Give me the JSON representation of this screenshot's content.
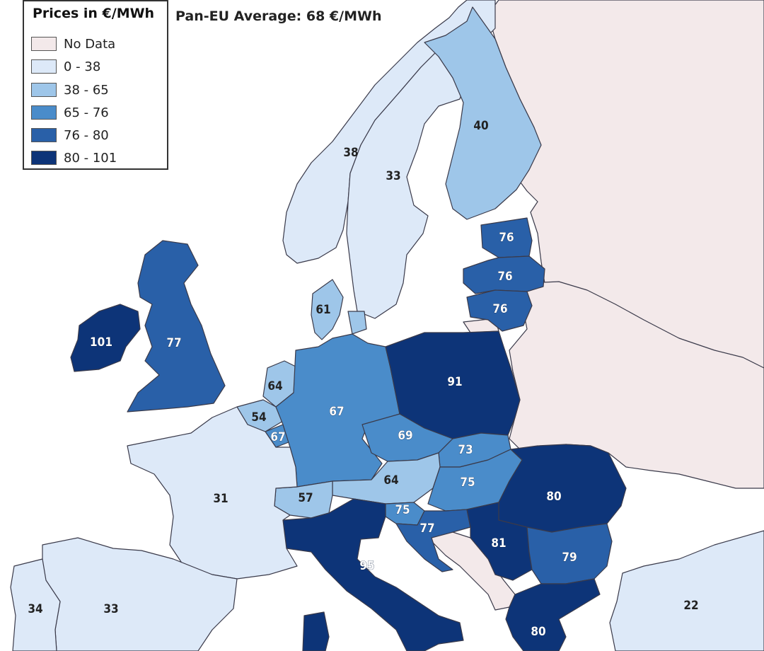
{
  "legend": {
    "title": "Prices in €/MWh",
    "items": [
      {
        "label": "No Data",
        "color": "#f3e9ea"
      },
      {
        "label": "0 - 38",
        "color": "#dde9f8"
      },
      {
        "label": "38 - 65",
        "color": "#9ec6e9"
      },
      {
        "label": "65 - 76",
        "color": "#4a8cca"
      },
      {
        "label": "76 - 80",
        "color": "#2960a8"
      },
      {
        "label": "80 - 101",
        "color": "#0d3478"
      }
    ]
  },
  "average": "Pan-EU Average: 68 €/MWh",
  "colors": {
    "sea": "#ffffff",
    "border": "#3a3a4a",
    "non_eu_land": "#f3e9ea"
  },
  "regions": [
    {
      "id": "ireland",
      "label": "101",
      "class": "80 - 101"
    },
    {
      "id": "great-britain",
      "label": "77",
      "class": "76 - 80"
    },
    {
      "id": "france",
      "label": "31",
      "class": "0 - 38"
    },
    {
      "id": "spain",
      "label": "33",
      "class": "0 - 38"
    },
    {
      "id": "portugal",
      "label": "34",
      "class": "0 - 38"
    },
    {
      "id": "belgium",
      "label": "54",
      "class": "38 - 65"
    },
    {
      "id": "netherlands",
      "label": "64",
      "class": "38 - 65"
    },
    {
      "id": "luxembourg",
      "label": "67",
      "class": "65 - 76"
    },
    {
      "id": "germany",
      "label": "67",
      "class": "65 - 76"
    },
    {
      "id": "switzerland",
      "label": "57",
      "class": "38 - 65"
    },
    {
      "id": "italy",
      "label": "95",
      "class": "80 - 101"
    },
    {
      "id": "austria",
      "label": "64",
      "class": "38 - 65"
    },
    {
      "id": "slovenia",
      "label": "75",
      "class": "65 - 76"
    },
    {
      "id": "croatia",
      "label": "77",
      "class": "76 - 80"
    },
    {
      "id": "czechia",
      "label": "69",
      "class": "65 - 76"
    },
    {
      "id": "slovakia",
      "label": "73",
      "class": "65 - 76"
    },
    {
      "id": "hungary",
      "label": "75",
      "class": "65 - 76"
    },
    {
      "id": "poland",
      "label": "91",
      "class": "80 - 101"
    },
    {
      "id": "romania",
      "label": "80",
      "class": "80 - 101"
    },
    {
      "id": "serbia",
      "label": "81",
      "class": "80 - 101"
    },
    {
      "id": "bulgaria",
      "label": "79",
      "class": "76 - 80"
    },
    {
      "id": "greece",
      "label": "80",
      "class": "80 - 101"
    },
    {
      "id": "turkey",
      "label": "22",
      "class": "0 - 38"
    },
    {
      "id": "denmark",
      "label": "61",
      "class": "38 - 65"
    },
    {
      "id": "norway",
      "label": "38",
      "class": "0 - 38"
    },
    {
      "id": "sweden",
      "label": "33",
      "class": "0 - 38"
    },
    {
      "id": "finland",
      "label": "40",
      "class": "38 - 65"
    },
    {
      "id": "estonia",
      "label": "76",
      "class": "76 - 80"
    },
    {
      "id": "latvia",
      "label": "76",
      "class": "76 - 80"
    },
    {
      "id": "lithuania",
      "label": "76",
      "class": "76 - 80"
    }
  ]
}
